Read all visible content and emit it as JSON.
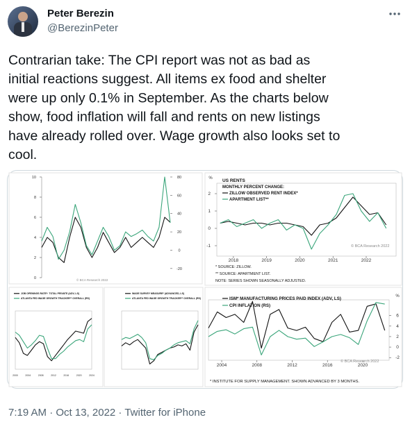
{
  "author": {
    "name": "Peter Berezin",
    "handle": "@BerezinPeter"
  },
  "tweet": {
    "lines": [
      "Contrarian take: The CPI report was not as bad as",
      "initial reactions suggest. All items ex food and shelter",
      "were up only 0.1% in September. As the charts below",
      "show, food inflation will fall and rents on new listings",
      "have already rolled over. Wage growth also looks set to",
      "cool."
    ]
  },
  "chart_data": [
    {
      "type": "line",
      "categories": [
        null,
        null,
        null,
        null,
        null,
        null,
        null,
        null,
        null,
        null,
        null,
        null,
        null,
        null,
        null,
        null,
        null,
        null,
        null,
        null,
        null,
        null,
        null,
        null
      ],
      "series": [
        {
          "name": null,
          "color": "#111111",
          "values": [
            3,
            4,
            3.5,
            2,
            1.5,
            4,
            6,
            5,
            3,
            2,
            3,
            4.5,
            3.5,
            2.5,
            3,
            4,
            3,
            3.5,
            4,
            3.5,
            3,
            4,
            6,
            5.5
          ]
        },
        {
          "name": null,
          "color": "#3aa57a",
          "axis": "y2",
          "values": [
            10,
            25,
            15,
            -10,
            0,
            20,
            50,
            30,
            5,
            -5,
            10,
            25,
            15,
            0,
            5,
            20,
            15,
            18,
            22,
            15,
            10,
            25,
            80,
            30
          ]
        }
      ],
      "ylim": [
        0,
        10
      ],
      "yticks": [
        0,
        2,
        4,
        6,
        8,
        10
      ],
      "y2lim": [
        -30,
        80
      ],
      "y2ticks": [
        -20,
        0,
        20,
        40,
        60,
        80
      ],
      "credit": "© BCA Research 2022"
    },
    {
      "type": "line",
      "title": "US RENTS",
      "subtitle": "MONTHLY PERCENT CHANGE:",
      "x": [
        2017.6,
        2017.85,
        2018.1,
        2018.35,
        2018.6,
        2018.85,
        2019.1,
        2019.35,
        2019.6,
        2019.85,
        2020.1,
        2020.35,
        2020.6,
        2020.85,
        2021.1,
        2021.35,
        2021.6,
        2021.85,
        2022.1,
        2022.35,
        2022.6
      ],
      "series": [
        {
          "name": "ZILLOW OBSERVED RENT INDEX*",
          "color": "#111111",
          "values": [
            0.3,
            0.4,
            0.3,
            0.2,
            0.3,
            0.3,
            0.2,
            0.3,
            0.3,
            0.2,
            0.1,
            -0.4,
            0.2,
            0.3,
            0.6,
            1.2,
            1.8,
            1.3,
            0.8,
            0.9,
            0.2
          ]
        },
        {
          "name": "APARTMENT LIST**",
          "color": "#3aa57a",
          "values": [
            0.3,
            0.5,
            0.1,
            0.3,
            0.5,
            0.0,
            0.3,
            0.5,
            -0.1,
            0.2,
            0.0,
            -1.2,
            -0.3,
            0.2,
            0.8,
            1.9,
            2.0,
            1.0,
            0.4,
            0.9,
            0.0
          ]
        }
      ],
      "xlim": [
        2017.5,
        2022.9
      ],
      "xticks": [
        2018,
        2019,
        2020,
        2021,
        2022
      ],
      "ylim": [
        -1.6,
        2.6
      ],
      "yticks": [
        -1,
        0,
        1,
        2
      ],
      "y_unit": "%",
      "notes": [
        "* SOURCE: ZILLOW.",
        "** SOURCE: APARTMENT LIST.",
        "NOTE: SERIES SHOWN SEASONALLY ADJUSTED."
      ],
      "credit": "© BCA Research 2022"
    },
    {
      "type": "line",
      "categories": [
        null,
        null,
        null,
        null,
        null,
        null,
        null,
        null,
        null,
        null,
        null,
        null,
        null,
        null,
        null,
        null,
        null,
        null,
        null,
        null
      ],
      "series": [
        {
          "name": "JOB OPENINGS RATE*: TOTAL PRIVATE (ADV, LS)",
          "color": "#111111",
          "values": [
            4,
            3.5,
            2.5,
            2.3,
            2.8,
            3.3,
            3.6,
            3.4,
            2.2,
            1.8,
            2.3,
            2.8,
            3.3,
            3.8,
            4.2,
            4.6,
            4.5,
            4.4,
            5.5,
            5.8
          ]
        },
        {
          "name": "ATLANTA FED WAGE GROWTH TRACKER** OVERALL (RS)",
          "color": "#3aa57a",
          "values": [
            4.5,
            4.2,
            3.6,
            3.0,
            3.3,
            3.7,
            4.2,
            4.1,
            3.0,
            2.0,
            2.0,
            2.4,
            2.7,
            3.1,
            3.4,
            3.7,
            3.8,
            3.6,
            4.8,
            5.2
          ]
        }
      ],
      "ylim": [
        1,
        6.5
      ],
      "xticks_text": [
        "2000",
        "2004",
        "2008",
        "2012",
        "2016",
        "2020",
        "2024"
      ]
    },
    {
      "type": "line",
      "categories": [
        null,
        null,
        null,
        null,
        null,
        null,
        null,
        null,
        null,
        null,
        null,
        null,
        null,
        null,
        null,
        null,
        null,
        null,
        null,
        null
      ],
      "series": [
        {
          "name": "WAGE SURVEY MEASURE* (ADVANCED, LS)",
          "color": "#111111",
          "values": [
            3.2,
            3.5,
            3.3,
            3.6,
            3.8,
            3.4,
            3.0,
            1.5,
            1.8,
            2.4,
            2.6,
            2.8,
            3.0,
            3.1,
            3.3,
            3.2,
            3.4,
            2.8,
            4.5,
            5.2
          ]
        },
        {
          "name": "ATLANTA FED WAGE GROWTH TRACKER** OVERALL (RS)",
          "color": "#3aa57a",
          "values": [
            3.8,
            4.0,
            3.9,
            4.1,
            4.3,
            4.0,
            3.5,
            2.0,
            1.9,
            2.3,
            2.5,
            2.8,
            3.0,
            3.3,
            3.5,
            3.6,
            3.7,
            3.4,
            4.8,
            5.6
          ]
        }
      ],
      "ylim": [
        1,
        6.5
      ]
    },
    {
      "type": "line",
      "x": [
        2002.5,
        2003.5,
        2004.5,
        2005.5,
        2006.5,
        2007.5,
        2008.5,
        2009.5,
        2010.5,
        2011.5,
        2012.5,
        2013.5,
        2014.5,
        2015.5,
        2016.5,
        2017.5,
        2018.5,
        2019.5,
        2020.5,
        2021.5,
        2022.5
      ],
      "series": [
        {
          "name": "ISM* MANUFACTURING PRICES PAID INDEX (ADV, LS)",
          "color": "#111111",
          "values": [
            55,
            75,
            68,
            72,
            62,
            88,
            30,
            72,
            78,
            55,
            52,
            56,
            42,
            38,
            62,
            72,
            50,
            52,
            82,
            85,
            52
          ]
        },
        {
          "name": "CPI INFLATION (RS)",
          "color": "#3aa57a",
          "axis": "y2",
          "values": [
            2,
            3,
            3.3,
            2.5,
            3.5,
            3.8,
            -1.5,
            2,
            3.2,
            2,
            1.5,
            1.7,
            0.1,
            1,
            2,
            2.4,
            1.8,
            0.5,
            5,
            8.5,
            8.2
          ]
        }
      ],
      "xlim": [
        2002.5,
        2023
      ],
      "xticks": [
        2004,
        2008,
        2012,
        2016,
        2020
      ],
      "ylim": [
        15,
        90
      ],
      "y2lim": [
        -2.5,
        9
      ],
      "y2ticks": [
        -2,
        0,
        2,
        4,
        6
      ],
      "y2_unit": "%",
      "notes": [
        "* INSTITUTE FOR SUPPLY MANAGEMENT. SHOWN ADVANCED BY 3 MONTHS."
      ],
      "credit": "© BCA Research 2022"
    }
  ],
  "footer": {
    "text": "7:19 AM · Oct 13, 2022 · Twitter for iPhone"
  }
}
